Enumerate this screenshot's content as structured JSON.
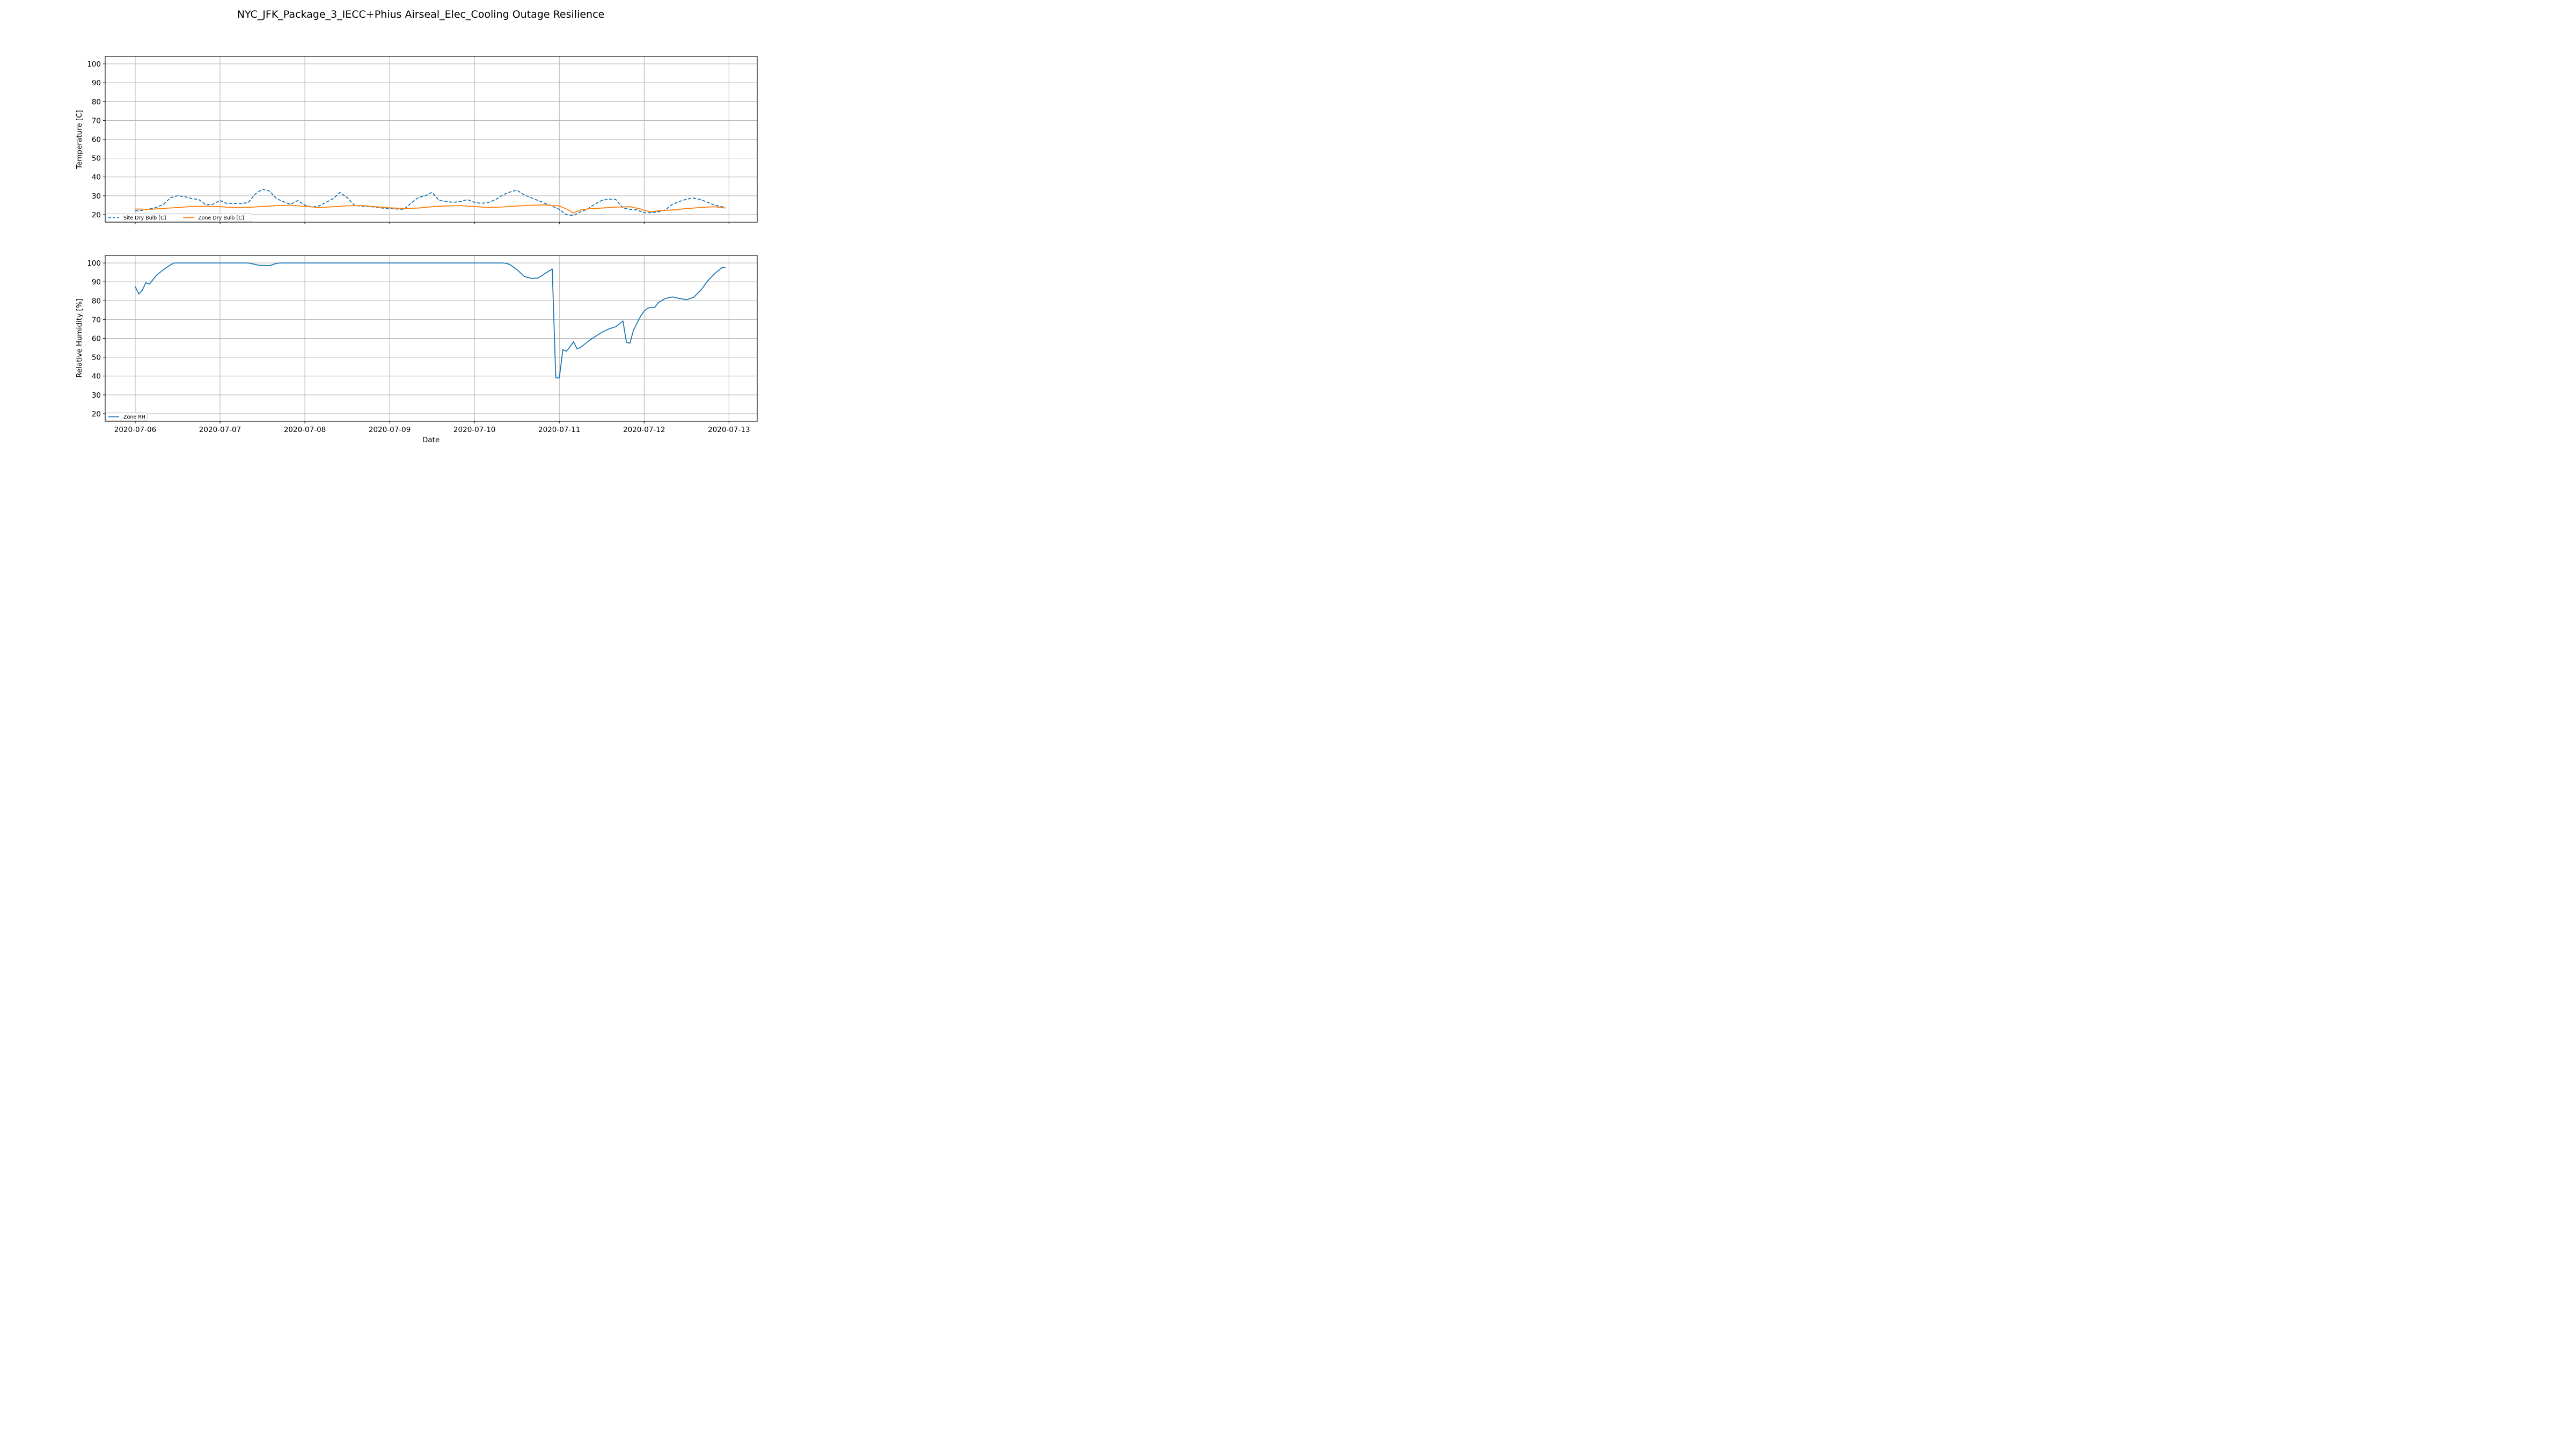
{
  "title": "NYC_JFK_Package_3_IECC+Phius Airseal_Elec_Cooling Outage Resilience",
  "chart_data": [
    {
      "type": "line",
      "ylabel": "Temperature [C]",
      "xlabel": "",
      "ylim": [
        16,
        104
      ],
      "yticks": [
        20,
        30,
        40,
        50,
        60,
        70,
        80,
        90,
        100
      ],
      "xlim": [
        "2020-07-05 15:30",
        "2020-07-13 08:00"
      ],
      "xticks": [
        "2020-07-06",
        "2020-07-07",
        "2020-07-08",
        "2020-07-09",
        "2020-07-10",
        "2020-07-11",
        "2020-07-12",
        "2020-07-13"
      ],
      "grid": true,
      "legend": {
        "placement": "lower-left",
        "ncol": 2
      },
      "series": [
        {
          "name": "Site Dry Bulb [C]",
          "color": "#1f77b4",
          "style": "dashed",
          "x": [
            "2020-07-06 00:00",
            "2020-07-06 02:00",
            "2020-07-06 04:00",
            "2020-07-06 06:00",
            "2020-07-06 08:00",
            "2020-07-06 10:00",
            "2020-07-06 12:00",
            "2020-07-06 14:00",
            "2020-07-06 16:00",
            "2020-07-06 18:00",
            "2020-07-06 20:00",
            "2020-07-06 22:00",
            "2020-07-07 00:00",
            "2020-07-07 02:00",
            "2020-07-07 04:00",
            "2020-07-07 06:00",
            "2020-07-07 08:00",
            "2020-07-07 10:00",
            "2020-07-07 12:00",
            "2020-07-07 14:00",
            "2020-07-07 16:00",
            "2020-07-07 18:00",
            "2020-07-07 20:00",
            "2020-07-07 22:00",
            "2020-07-08 00:00",
            "2020-07-08 02:00",
            "2020-07-08 04:00",
            "2020-07-08 06:00",
            "2020-07-08 08:00",
            "2020-07-08 10:00",
            "2020-07-08 12:00",
            "2020-07-08 14:00",
            "2020-07-08 16:00",
            "2020-07-08 18:00",
            "2020-07-08 20:00",
            "2020-07-08 22:00",
            "2020-07-09 00:00",
            "2020-07-09 02:00",
            "2020-07-09 04:00",
            "2020-07-09 06:00",
            "2020-07-09 08:00",
            "2020-07-09 10:00",
            "2020-07-09 12:00",
            "2020-07-09 14:00",
            "2020-07-09 16:00",
            "2020-07-09 18:00",
            "2020-07-09 20:00",
            "2020-07-09 22:00",
            "2020-07-10 00:00",
            "2020-07-10 02:00",
            "2020-07-10 04:00",
            "2020-07-10 06:00",
            "2020-07-10 08:00",
            "2020-07-10 10:00",
            "2020-07-10 12:00",
            "2020-07-10 14:00",
            "2020-07-10 16:00",
            "2020-07-10 18:00",
            "2020-07-10 20:00",
            "2020-07-10 22:00",
            "2020-07-11 00:00",
            "2020-07-11 02:00",
            "2020-07-11 04:00",
            "2020-07-11 06:00",
            "2020-07-11 08:00",
            "2020-07-11 10:00",
            "2020-07-11 12:00",
            "2020-07-11 14:00",
            "2020-07-11 16:00",
            "2020-07-11 18:00",
            "2020-07-11 20:00",
            "2020-07-11 22:00",
            "2020-07-12 00:00",
            "2020-07-12 02:00",
            "2020-07-12 04:00",
            "2020-07-12 06:00",
            "2020-07-12 08:00",
            "2020-07-12 10:00",
            "2020-07-12 12:00",
            "2020-07-12 14:00",
            "2020-07-12 16:00",
            "2020-07-12 18:00",
            "2020-07-12 20:00",
            "2020-07-12 22:00",
            "2020-07-12 23:00"
          ],
          "y": [
            22.0,
            22.3,
            23.0,
            23.8,
            25.5,
            29.0,
            30.0,
            29.5,
            28.5,
            28.0,
            25.2,
            25.5,
            27.5,
            25.8,
            26.0,
            25.8,
            26.5,
            31.0,
            33.5,
            32.5,
            28.5,
            26.8,
            25.5,
            27.5,
            25.0,
            24.0,
            24.6,
            26.5,
            28.5,
            31.8,
            29.0,
            25.0,
            24.5,
            24.3,
            24.0,
            23.5,
            23.3,
            23.0,
            22.8,
            26.0,
            29.0,
            30.0,
            31.8,
            27.5,
            27.0,
            26.5,
            27.0,
            28.0,
            26.5,
            26.0,
            26.5,
            28.0,
            30.5,
            32.0,
            33.0,
            30.5,
            29.0,
            27.5,
            26.0,
            24.5,
            22.8,
            20.0,
            19.5,
            21.5,
            23.0,
            25.5,
            27.5,
            28.3,
            28.0,
            23.5,
            22.8,
            22.5,
            21.0,
            21.0,
            21.5,
            22.5,
            25.5,
            27.0,
            28.2,
            28.8,
            28.0,
            26.5,
            25.0,
            24.2,
            23.8
          ]
        },
        {
          "name": "Zone Dry Bulb [C]",
          "color": "#ff7f0e",
          "style": "solid",
          "x": [
            "2020-07-06 00:00",
            "2020-07-06 04:00",
            "2020-07-06 08:00",
            "2020-07-06 12:00",
            "2020-07-06 16:00",
            "2020-07-06 20:00",
            "2020-07-07 00:00",
            "2020-07-07 04:00",
            "2020-07-07 08:00",
            "2020-07-07 12:00",
            "2020-07-07 16:00",
            "2020-07-07 20:00",
            "2020-07-08 00:00",
            "2020-07-08 04:00",
            "2020-07-08 08:00",
            "2020-07-08 12:00",
            "2020-07-08 16:00",
            "2020-07-08 20:00",
            "2020-07-09 00:00",
            "2020-07-09 04:00",
            "2020-07-09 08:00",
            "2020-07-09 12:00",
            "2020-07-09 16:00",
            "2020-07-09 20:00",
            "2020-07-10 00:00",
            "2020-07-10 04:00",
            "2020-07-10 08:00",
            "2020-07-10 12:00",
            "2020-07-10 16:00",
            "2020-07-10 20:00",
            "2020-07-11 00:00",
            "2020-07-11 02:00",
            "2020-07-11 04:00",
            "2020-07-11 06:00",
            "2020-07-11 08:00",
            "2020-07-11 12:00",
            "2020-07-11 16:00",
            "2020-07-11 20:00",
            "2020-07-11 23:00",
            "2020-07-12 00:00",
            "2020-07-12 02:00",
            "2020-07-12 04:00",
            "2020-07-12 08:00",
            "2020-07-12 12:00",
            "2020-07-12 16:00",
            "2020-07-12 20:00",
            "2020-07-12 23:00"
          ],
          "y": [
            23.0,
            22.8,
            23.3,
            23.8,
            24.3,
            24.5,
            24.2,
            23.8,
            23.9,
            24.3,
            24.8,
            25.0,
            24.4,
            23.8,
            24.2,
            24.7,
            24.8,
            24.2,
            23.6,
            23.3,
            23.5,
            24.2,
            24.6,
            24.8,
            24.3,
            23.8,
            24.1,
            24.6,
            25.0,
            25.2,
            24.6,
            23.0,
            20.8,
            22.5,
            23.0,
            23.5,
            24.0,
            24.2,
            23.0,
            22.3,
            21.5,
            22.0,
            22.5,
            23.2,
            23.8,
            24.2,
            23.5
          ]
        }
      ]
    },
    {
      "type": "line",
      "ylabel": "Relative Humidity [%]",
      "xlabel": "Date",
      "ylim": [
        16,
        104
      ],
      "yticks": [
        20,
        30,
        40,
        50,
        60,
        70,
        80,
        90,
        100
      ],
      "xlim": [
        "2020-07-05 15:30",
        "2020-07-13 08:00"
      ],
      "xticks": [
        "2020-07-06",
        "2020-07-07",
        "2020-07-08",
        "2020-07-09",
        "2020-07-10",
        "2020-07-11",
        "2020-07-12",
        "2020-07-13"
      ],
      "grid": true,
      "legend": {
        "placement": "lower-left",
        "ncol": 1
      },
      "series": [
        {
          "name": "Zone RH",
          "color": "#1f77b4",
          "style": "solid",
          "x": [
            "2020-07-06 00:00",
            "2020-07-06 01:00",
            "2020-07-06 02:00",
            "2020-07-06 03:00",
            "2020-07-06 04:00",
            "2020-07-06 06:00",
            "2020-07-06 08:00",
            "2020-07-06 10:00",
            "2020-07-06 11:00",
            "2020-07-07 00:00",
            "2020-07-07 08:00",
            "2020-07-07 09:00",
            "2020-07-07 11:00",
            "2020-07-07 14:00",
            "2020-07-07 16:00",
            "2020-07-07 17:00",
            "2020-07-08 00:00",
            "2020-07-09 00:00",
            "2020-07-10 00:00",
            "2020-07-10 08:00",
            "2020-07-10 09:00",
            "2020-07-10 10:00",
            "2020-07-10 12:00",
            "2020-07-10 14:00",
            "2020-07-10 16:00",
            "2020-07-10 18:00",
            "2020-07-10 20:00",
            "2020-07-10 22:00",
            "2020-07-10 23:00",
            "2020-07-11 00:00",
            "2020-07-11 01:00",
            "2020-07-11 02:00",
            "2020-07-11 03:00",
            "2020-07-11 04:00",
            "2020-07-11 05:00",
            "2020-07-11 06:00",
            "2020-07-11 08:00",
            "2020-07-11 10:00",
            "2020-07-11 12:00",
            "2020-07-11 14:00",
            "2020-07-11 16:00",
            "2020-07-11 18:00",
            "2020-07-11 19:00",
            "2020-07-11 20:00",
            "2020-07-11 21:00",
            "2020-07-11 23:00",
            "2020-07-12 00:00",
            "2020-07-12 01:00",
            "2020-07-12 02:00",
            "2020-07-12 03:00",
            "2020-07-12 04:00",
            "2020-07-12 06:00",
            "2020-07-12 08:00",
            "2020-07-12 10:00",
            "2020-07-12 12:00",
            "2020-07-12 14:00",
            "2020-07-12 16:00",
            "2020-07-12 18:00",
            "2020-07-12 20:00",
            "2020-07-12 22:00",
            "2020-07-12 23:00"
          ],
          "y": [
            87.5,
            83.5,
            85.5,
            89.5,
            88.8,
            93.5,
            96.5,
            99.0,
            100,
            100,
            100,
            99.6,
            98.8,
            98.6,
            99.8,
            100,
            100,
            100,
            100,
            100,
            99.8,
            99.2,
            96.5,
            93.0,
            91.8,
            92.0,
            94.5,
            96.8,
            39.0,
            39.0,
            54.0,
            53.2,
            55.5,
            58.2,
            54.5,
            55.2,
            58.2,
            60.8,
            63.2,
            65.0,
            66.2,
            69.2,
            57.8,
            57.5,
            64.5,
            71.8,
            74.5,
            76.0,
            76.5,
            76.4,
            79.0,
            81.2,
            82.0,
            81.2,
            80.5,
            81.8,
            85.5,
            90.5,
            94.5,
            97.5,
            97.5
          ]
        }
      ]
    }
  ]
}
